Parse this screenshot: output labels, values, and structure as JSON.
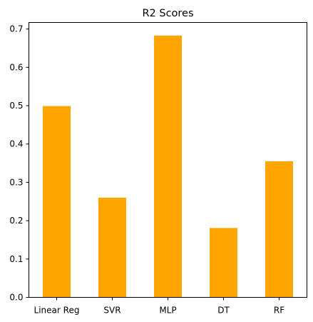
{
  "chart_data": {
    "type": "bar",
    "title": "R2 Scores",
    "xlabel": "",
    "ylabel": "",
    "categories": [
      "Linear Reg",
      "SVR",
      "MLP",
      "DT",
      "RF"
    ],
    "values": [
      0.499,
      0.26,
      0.683,
      0.181,
      0.355
    ],
    "ylim": [
      0,
      0.717
    ],
    "yticks": [
      0.0,
      0.1,
      0.2,
      0.3,
      0.4,
      0.5,
      0.6,
      0.7
    ],
    "ytick_labels": [
      "0.0",
      "0.1",
      "0.2",
      "0.3",
      "0.4",
      "0.5",
      "0.6",
      "0.7"
    ],
    "bar_color": "#ffa500",
    "grid": false,
    "legend": "none"
  }
}
